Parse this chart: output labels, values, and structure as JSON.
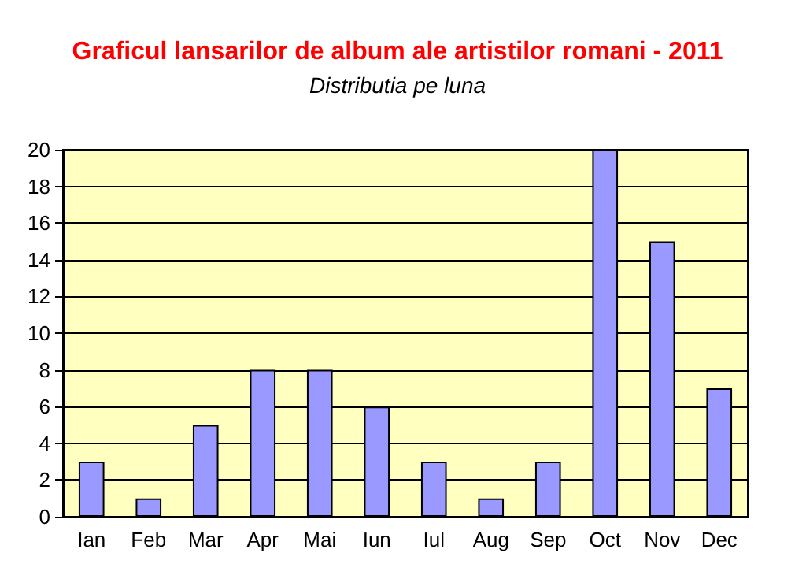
{
  "chart_data": {
    "type": "bar",
    "title": "Graficul lansarilor de album ale artistilor romani - 2011",
    "subtitle": "Distributia pe luna",
    "categories": [
      "Ian",
      "Feb",
      "Mar",
      "Apr",
      "Mai",
      "Iun",
      "Iul",
      "Aug",
      "Sep",
      "Oct",
      "Nov",
      "Dec"
    ],
    "values": [
      3,
      1,
      5,
      8,
      8,
      6,
      3,
      1,
      3,
      20,
      15,
      7
    ],
    "color": "#9999ff",
    "ylim": [
      0,
      20
    ],
    "yticks": [
      0,
      2,
      4,
      6,
      8,
      10,
      12,
      14,
      16,
      18,
      20
    ],
    "grid": "y"
  }
}
